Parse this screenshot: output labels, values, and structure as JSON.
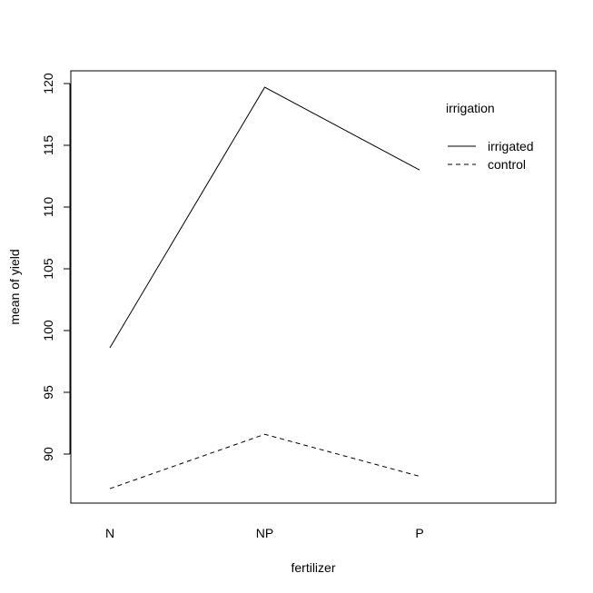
{
  "chart_data": {
    "type": "line",
    "title": "",
    "xlabel": "fertilizer",
    "ylabel": "mean of yield",
    "categories": [
      "N",
      "NP",
      "P"
    ],
    "ylim": [
      86,
      121
    ],
    "yticks": [
      90,
      95,
      100,
      105,
      110,
      115,
      120
    ],
    "grid": false,
    "legend": {
      "title": "irrigation",
      "placement": "top-right"
    },
    "series": [
      {
        "name": "irrigated",
        "style": "solid",
        "values": [
          98.6,
          119.7,
          113.0
        ]
      },
      {
        "name": "control",
        "style": "dashed",
        "values": [
          87.2,
          91.6,
          88.2
        ]
      }
    ],
    "colors": {
      "line": "#000000",
      "background": "#ffffff"
    }
  }
}
